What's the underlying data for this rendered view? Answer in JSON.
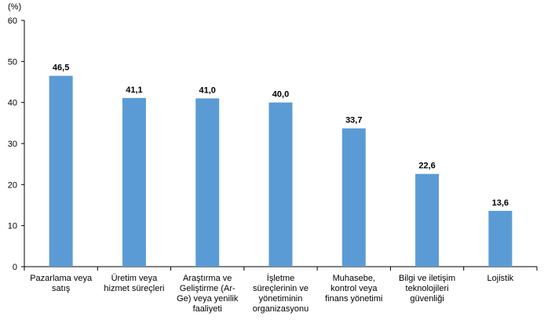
{
  "chart_data": {
    "type": "bar",
    "unit_label": "(%)",
    "categories": [
      [
        "Pazarlama veya",
        "satış"
      ],
      [
        "Üretim veya",
        "hizmet süreçleri"
      ],
      [
        "Araştırma ve",
        "Geliştirme (Ar-",
        "Ge) veya yenilik",
        "faaliyeti"
      ],
      [
        "İşletme",
        "süreçlerinin ve",
        "yönetiminin",
        "organizasyonu"
      ],
      [
        "Muhasebe,",
        "kontrol veya",
        "finans yönetimi"
      ],
      [
        "Bilgi ve iletişim",
        "teknolojileri",
        "güvenliği"
      ],
      [
        "Lojistik"
      ]
    ],
    "values": [
      46.5,
      41.1,
      41.0,
      40.0,
      33.7,
      22.6,
      13.6
    ],
    "data_labels": [
      "46,5",
      "41,1",
      "41,0",
      "40,0",
      "33,7",
      "22,6",
      "13,6"
    ],
    "yticks": [
      0,
      10,
      20,
      30,
      40,
      50,
      60
    ],
    "ylim": [
      0,
      60
    ],
    "grid": false,
    "bar_color": "#5B9BD5"
  }
}
